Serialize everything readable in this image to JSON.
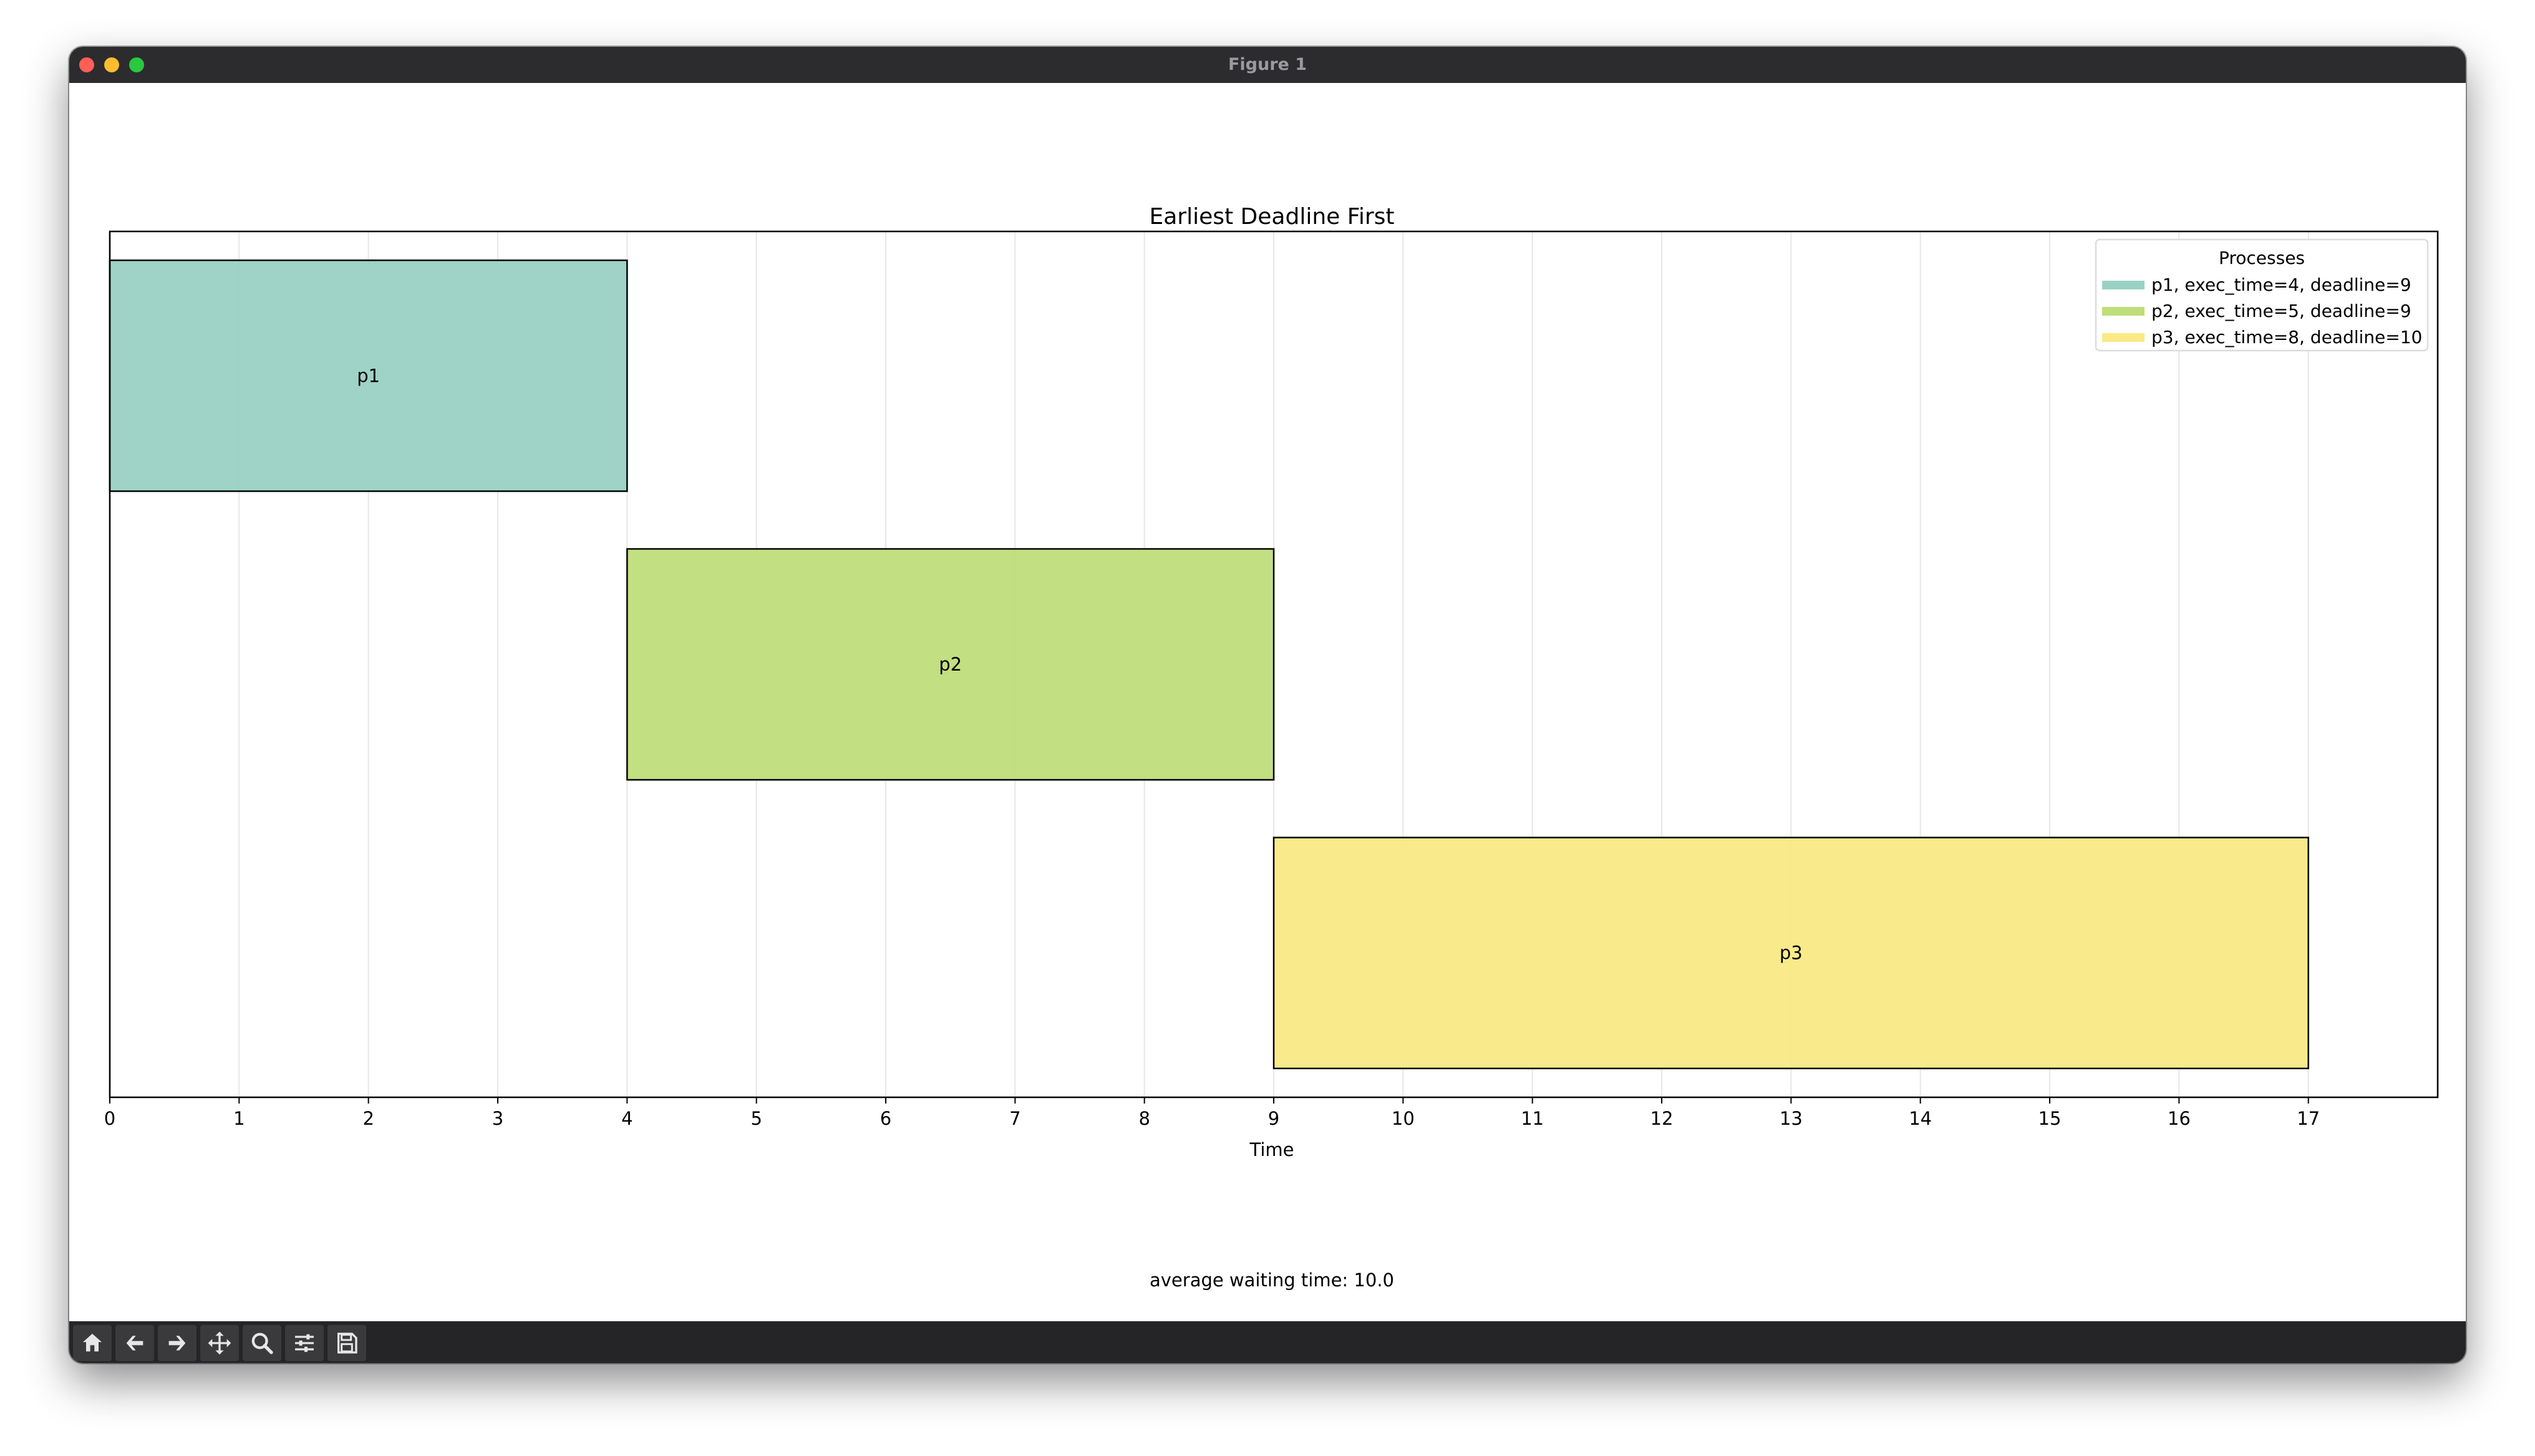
{
  "window": {
    "title": "Figure 1"
  },
  "toolbar": {
    "buttons": [
      {
        "icon": "home-icon",
        "label": "Home"
      },
      {
        "icon": "back-arrow-icon",
        "label": "Back"
      },
      {
        "icon": "forward-arrow-icon",
        "label": "Forward"
      },
      {
        "icon": "pan-icon",
        "label": "Pan"
      },
      {
        "icon": "zoom-icon",
        "label": "Zoom"
      },
      {
        "icon": "configure-subplots-icon",
        "label": "Configure subplots"
      },
      {
        "icon": "save-icon",
        "label": "Save"
      }
    ]
  },
  "chart_data": {
    "type": "bar",
    "orientation": "horizontal-gantt",
    "title": "Earliest Deadline First",
    "xlabel": "Time",
    "ylabel": "",
    "xlim": [
      0,
      18
    ],
    "xticks": [
      0,
      1,
      2,
      3,
      4,
      5,
      6,
      7,
      8,
      9,
      10,
      11,
      12,
      13,
      14,
      15,
      16,
      17
    ],
    "grid": "vertical, light",
    "legend": {
      "title": "Processes",
      "placement": "top-right",
      "entries": [
        "p1, exec_time=4, deadline=9",
        "p2, exec_time=5, deadline=9",
        "p3, exec_time=8, deadline=10"
      ]
    },
    "series": [
      {
        "name": "p1",
        "start": 0,
        "end": 4,
        "color": "#9ad1c4"
      },
      {
        "name": "p2",
        "start": 4,
        "end": 9,
        "color": "#bfdd7a"
      },
      {
        "name": "p3",
        "start": 9,
        "end": 17,
        "color": "#f9ea85"
      }
    ],
    "footer": "average waiting time: 10.0"
  }
}
